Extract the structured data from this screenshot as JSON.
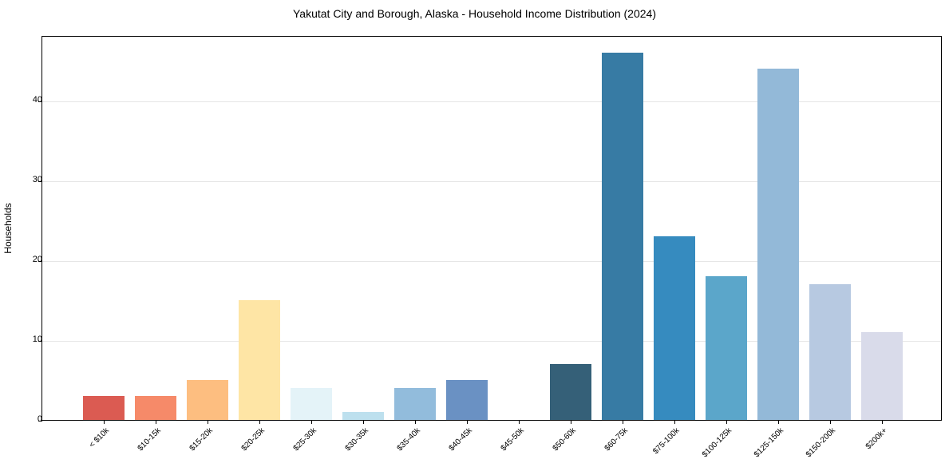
{
  "chart_data": {
    "type": "bar",
    "title": "Yakutat City and Borough, Alaska - Household Income Distribution (2024)",
    "xlabel": "",
    "ylabel": "Households",
    "ylim": [
      0,
      48
    ],
    "yticks": [
      0,
      10,
      20,
      30,
      40
    ],
    "grid": "y",
    "legend": null,
    "categories": [
      "< $10k",
      "$10-15k",
      "$15-20k",
      "$20-25k",
      "$25-30k",
      "$30-35k",
      "$35-40k",
      "$40-45k",
      "$45-50k",
      "$50-60k",
      "$60-75k",
      "$75-100k",
      "$100-125k",
      "$125-150k",
      "$150-200k",
      "$200k+"
    ],
    "values": [
      3,
      3,
      5,
      15,
      4,
      1,
      4,
      5,
      0,
      7,
      46,
      23,
      18,
      44,
      17,
      11
    ],
    "colors": [
      "#db5b52",
      "#f68a69",
      "#fdbe80",
      "#fee5a5",
      "#e4f3f8",
      "#bde0ee",
      "#92bcdc",
      "#6a91c3",
      "#4a6a8a",
      "#356078",
      "#377ba4",
      "#368bbf",
      "#5ba6ca",
      "#93b9d8",
      "#b7c9e1",
      "#d9dbea"
    ]
  },
  "title": "Yakutat City and Borough, Alaska - Household Income Distribution (2024)",
  "ylabel": "Households",
  "ytick_labels": [
    "0",
    "10",
    "20",
    "30",
    "40"
  ]
}
